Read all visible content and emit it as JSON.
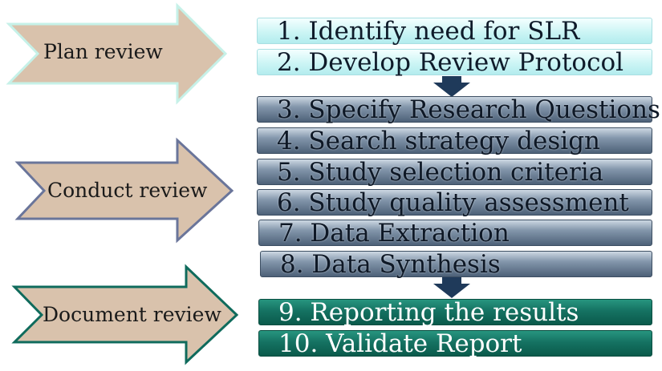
{
  "phases": [
    {
      "label": "Plan review"
    },
    {
      "label": "Conduct review"
    },
    {
      "label": "Document review"
    }
  ],
  "steps": [
    {
      "label": "1. Identify need for  SLR",
      "phase": "plan"
    },
    {
      "label": "2. Develop Review Protocol",
      "phase": "plan"
    },
    {
      "label": "3. Specify Research Questions",
      "phase": "conduct"
    },
    {
      "label": "4. Search strategy design",
      "phase": "conduct"
    },
    {
      "label": "5. Study selection criteria",
      "phase": "conduct"
    },
    {
      "label": "6. Study quality assessment",
      "phase": "conduct"
    },
    {
      "label": "7.  Data Extraction",
      "phase": "conduct"
    },
    {
      "label": "8.  Data Synthesis",
      "phase": "conduct"
    },
    {
      "label": "9. Reporting the results",
      "phase": "document"
    },
    {
      "label": "10. Validate Report",
      "phase": "document"
    }
  ],
  "colors": {
    "phase_arrow_fill": "#d9c2ac",
    "plan_arrow_border": "#c6f1e8",
    "conduct_arrow_border": "#6a759a",
    "document_arrow_border": "#0f6b5c",
    "plan_step": "#ccf5f5",
    "conduct_step": "#5c7088",
    "document_step": "#137060",
    "transition_arrow": "#1f3a5a"
  }
}
